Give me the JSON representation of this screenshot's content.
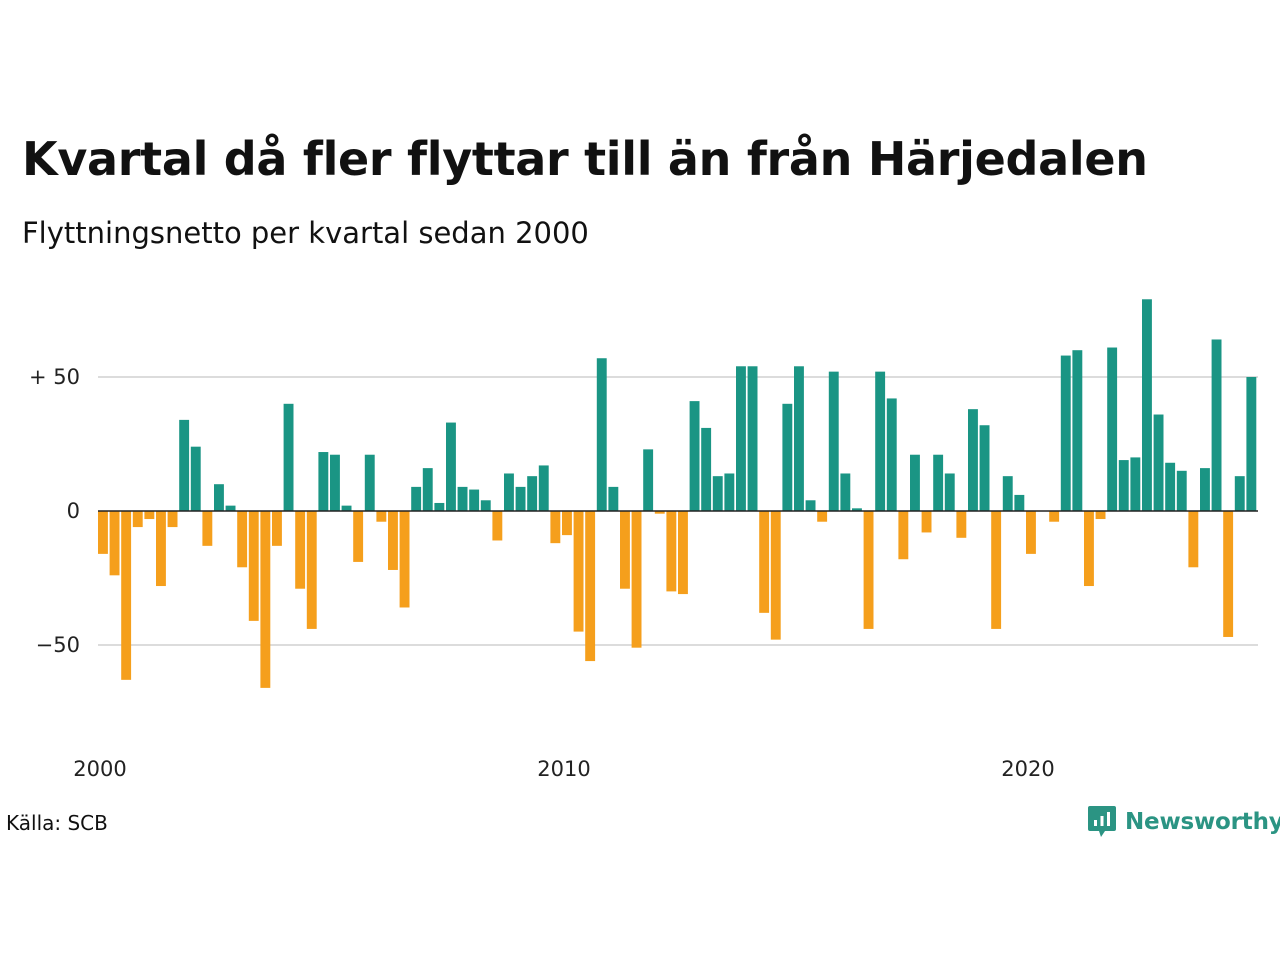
{
  "chart_data": {
    "type": "bar",
    "title": "Kvartal då fler flyttar till än från Härjedalen",
    "subtitle": "Flyttningsnetto per kvartal sedan 2000",
    "start_year": 2000,
    "values": [
      -16,
      -24,
      -63,
      -6,
      -3,
      -28,
      -6,
      34,
      24,
      -13,
      10,
      2,
      -21,
      -41,
      -66,
      -13,
      40,
      -29,
      -44,
      22,
      21,
      2,
      -19,
      21,
      -4,
      -22,
      -36,
      9,
      16,
      3,
      33,
      9,
      8,
      4,
      -11,
      14,
      9,
      13,
      17,
      -12,
      -9,
      -45,
      -56,
      57,
      9,
      -29,
      -51,
      23,
      -1,
      -30,
      -31,
      41,
      31,
      13,
      14,
      54,
      54,
      -38,
      -48,
      40,
      54,
      4,
      -4,
      52,
      14,
      1,
      -44,
      52,
      42,
      -18,
      21,
      -8,
      21,
      14,
      -10,
      38,
      32,
      -44,
      13,
      6,
      -16,
      0,
      -4,
      58,
      60,
      -28,
      -3,
      61,
      19,
      20,
      79,
      36,
      18,
      15,
      -21,
      16,
      64,
      -47,
      13,
      50
    ],
    "ylim": [
      -70,
      80
    ],
    "yticks": [
      {
        "value": 50,
        "label": "+ 50"
      },
      {
        "value": 0,
        "label": "0"
      },
      {
        "value": -50,
        "label": "−50"
      }
    ],
    "xticks": [
      {
        "year": 2000,
        "label": "2000"
      },
      {
        "year": 2010,
        "label": "2010"
      },
      {
        "year": 2020,
        "label": "2020"
      }
    ],
    "grid": true,
    "colors": {
      "positive": "#1a9584",
      "negative": "#f59f1c",
      "grid": "#dcdcdc",
      "zero_line": "#222222"
    }
  },
  "footer": {
    "source": "Källa: SCB",
    "logo_text": "Newsworthy",
    "logo_icon": "newsworthy-logo-icon",
    "logo_color": "#2b9483"
  }
}
